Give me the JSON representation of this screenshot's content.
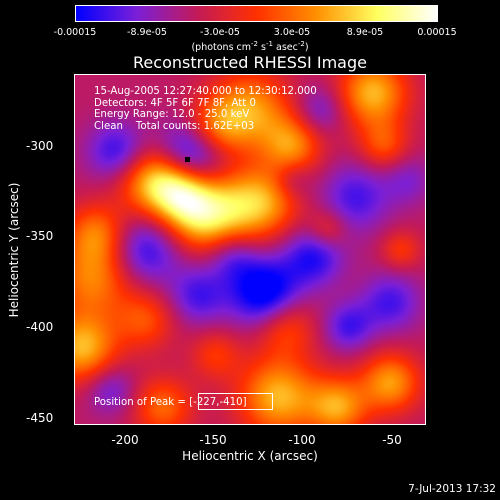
{
  "chart_data": {
    "type": "heatmap",
    "title": "Reconstructed RHESSI Image",
    "xlabel": "Heliocentric X (arcsec)",
    "ylabel": "Heliocentric Y (arcsec)",
    "xlim": [
      -227,
      -30
    ],
    "ylim": [
      -455,
      -258
    ],
    "x_ticks": [
      -200,
      -150,
      -100,
      -50
    ],
    "y_ticks": [
      -300,
      -350,
      -400,
      -450
    ],
    "colorbar": {
      "range": [
        -0.00015,
        0.00015
      ],
      "tick_labels": [
        "-0.00015",
        "-8.9e-05",
        "-3.0e-05",
        "3.0e-05",
        "8.9e-05",
        "0.00015"
      ],
      "units_prefix": "(photons cm",
      "units_exp1": "-2",
      "units_mid": " s",
      "units_exp2": "-1",
      "units_mid2": " asec",
      "units_exp3": "-2",
      "units_suffix": ")",
      "colors": [
        "#0000ff",
        "#7a1fd8",
        "#c21a5a",
        "#ff3000",
        "#ff9000",
        "#ffff60",
        "#ffffff"
      ]
    },
    "annotations": [
      "15-Aug-2005 12:27:40.000 to 12:30:12.000",
      "Detectors: 4F 5F 6F 7F 8F, Att 0",
      "Energy Range: 12.0 - 25.0 keV",
      "Clean    Total counts: 1.62E+03"
    ],
    "peak_label": "Position of Peak = ",
    "peak_value": "[-227,-410]",
    "peak_position": [
      -227,
      -410
    ],
    "grid": false
  },
  "timestamp": "7-Jul-2013 17:32"
}
